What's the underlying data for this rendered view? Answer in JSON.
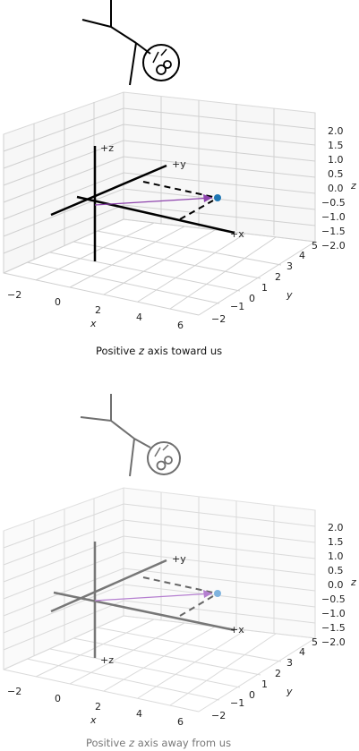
{
  "panels": [
    {
      "faded": false,
      "caption_before": "Positive ",
      "caption_axis": "z",
      "caption_after": " axis toward us",
      "axis_labels": {
        "z": "+z",
        "y": "+y",
        "x": "+x"
      },
      "x_tick_labels": [
        "−2",
        "0",
        "2",
        "4",
        "6"
      ],
      "x_axis_label": "x",
      "y_tick_labels": [
        "−2",
        "−1",
        "0",
        "1",
        "2",
        "3",
        "4",
        "5"
      ],
      "y_axis_label": "y",
      "z_tick_labels": [
        "2.0",
        "1.5",
        "1.0",
        "0.5",
        "0.0",
        "−0.5",
        "−1.0",
        "−1.5",
        "−2.0"
      ],
      "z_axis_label": "z",
      "colors": {
        "vector": "#8e44ad",
        "point": "#1f77b4",
        "axes": "#000000"
      }
    },
    {
      "faded": true,
      "caption_before": "Positive ",
      "caption_axis": "z",
      "caption_after": " axis away from us",
      "axis_labels": {
        "z": "+z",
        "y": "+y",
        "x": "+x"
      },
      "x_tick_labels": [
        "−2",
        "0",
        "2",
        "4",
        "6"
      ],
      "x_axis_label": "x",
      "y_tick_labels": [
        "−2",
        "−1",
        "0",
        "1",
        "2",
        "3",
        "4",
        "5"
      ],
      "y_axis_label": "y",
      "z_tick_labels": [
        "2.0",
        "1.5",
        "1.0",
        "0.5",
        "0.0",
        "−0.5",
        "−1.0",
        "−1.5",
        "−2.0"
      ],
      "z_axis_label": "z",
      "colors": {
        "vector": "#b57fd0",
        "point": "#7fb3de",
        "axes": "#777777"
      }
    }
  ]
}
